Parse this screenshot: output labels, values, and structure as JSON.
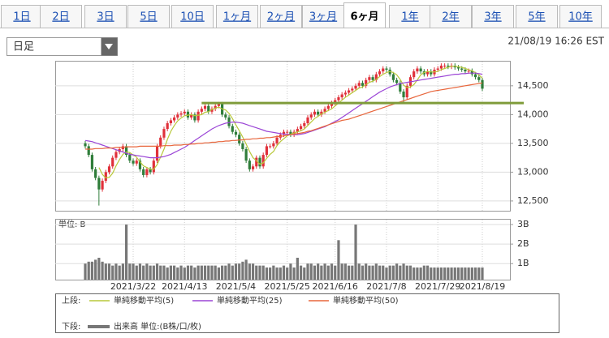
{
  "tabs": [
    "1日",
    "2日",
    "3日",
    "5日",
    "10日",
    "1ヶ月",
    "2ヶ月",
    "3ヶ月",
    "6ヶ月",
    "1年",
    "2年",
    "3年",
    "5年",
    "10年"
  ],
  "active_tab": "6ヶ月",
  "dropdown": "日足",
  "timestamp": "21/08/19 16:26 EST",
  "chart_data": [
    {
      "type": "candlestick",
      "up_color": "#e0303a",
      "down_color": "#2f7d3a",
      "ylim": [
        12330,
        14920
      ],
      "yticks": [
        {
          "value": 12500,
          "label": "12,500"
        },
        {
          "value": 13000,
          "label": "13,000"
        },
        {
          "value": 13500,
          "label": "13,500"
        },
        {
          "value": 14000,
          "label": "14,000"
        },
        {
          "value": 14500,
          "label": "14,500"
        }
      ],
      "grid": true,
      "legend_prefix": "上段:",
      "reference_line": {
        "value": 14200,
        "color": "#7f9c3a"
      },
      "open": [
        13500,
        13450,
        13300,
        13050,
        12900,
        12700,
        12850,
        13000,
        13100,
        13250,
        13350,
        13400,
        13450,
        13300,
        13200,
        13150,
        13200,
        13050,
        12950,
        13050,
        13000,
        13200,
        13450,
        13600,
        13750,
        13850,
        13900,
        13950,
        14000,
        14020,
        14050,
        13950,
        14000,
        13900,
        14050,
        14100,
        14150,
        14050,
        14100,
        14150,
        14180,
        14000,
        13950,
        13800,
        13700,
        13650,
        13500,
        13400,
        13200,
        13050,
        13100,
        13250,
        13100,
        13300,
        13450,
        13450,
        13500,
        13600,
        13650,
        13700,
        13700,
        13650,
        13700,
        13750,
        13800,
        13850,
        13950,
        14000,
        14050,
        14000,
        14050,
        14100,
        14150,
        14200,
        14250,
        14300,
        14350,
        14380,
        14420,
        14450,
        14500,
        14550,
        14500,
        14600,
        14650,
        14600,
        14700,
        14750,
        14800,
        14780,
        14700,
        14600,
        14550,
        14400,
        14300,
        14500,
        14650,
        14750,
        14800,
        14750,
        14700,
        14750,
        14700,
        14780,
        14800,
        14850,
        14850,
        14830,
        14850,
        14820,
        14800,
        14780,
        14750,
        14760,
        14700,
        14650,
        14600
      ],
      "high": [
        13540,
        13490,
        13340,
        13090,
        12940,
        12890,
        13040,
        13140,
        13290,
        13390,
        13440,
        13490,
        13490,
        13340,
        13240,
        13240,
        13240,
        13090,
        13090,
        13090,
        13240,
        13490,
        13640,
        13790,
        13890,
        13940,
        13990,
        14040,
        14060,
        14090,
        14090,
        14040,
        14040,
        14090,
        14140,
        14190,
        14190,
        14140,
        14190,
        14220,
        14220,
        14040,
        13990,
        13840,
        13740,
        13690,
        13540,
        13440,
        13240,
        13140,
        13290,
        13290,
        13340,
        13490,
        13490,
        13540,
        13640,
        13690,
        13740,
        13740,
        13740,
        13740,
        13790,
        13840,
        13890,
        13990,
        14040,
        14090,
        14090,
        14090,
        14140,
        14190,
        14240,
        14290,
        14340,
        14390,
        14420,
        14460,
        14490,
        14540,
        14590,
        14590,
        14640,
        14690,
        14690,
        14740,
        14790,
        14840,
        14840,
        14820,
        14740,
        14640,
        14590,
        14440,
        14540,
        14690,
        14790,
        14840,
        14840,
        14790,
        14790,
        14790,
        14820,
        14840,
        14890,
        14890,
        14890,
        14890,
        14890,
        14860,
        14840,
        14820,
        14800,
        14800,
        14740,
        14690,
        14640
      ],
      "low": [
        13410,
        13260,
        13010,
        12860,
        12420,
        12660,
        12810,
        12960,
        13060,
        13210,
        13310,
        13360,
        13260,
        13160,
        13110,
        13110,
        13010,
        12910,
        12910,
        12960,
        12960,
        13160,
        13410,
        13560,
        13710,
        13810,
        13860,
        13910,
        13960,
        13980,
        13910,
        13910,
        13860,
        13860,
        14010,
        14060,
        14010,
        14010,
        14060,
        14110,
        13960,
        13910,
        13760,
        13660,
        13610,
        13460,
        13360,
        13160,
        13010,
        13010,
        13060,
        13060,
        13060,
        13260,
        13410,
        13410,
        13460,
        13560,
        13610,
        13660,
        13610,
        13610,
        13660,
        13710,
        13760,
        13810,
        13910,
        13960,
        13960,
        13960,
        14010,
        14060,
        14110,
        14160,
        14210,
        14260,
        14310,
        14340,
        14380,
        14410,
        14460,
        14460,
        14460,
        14560,
        14560,
        14560,
        14660,
        14710,
        14740,
        14660,
        14560,
        14510,
        14360,
        14200,
        14260,
        14460,
        14610,
        14710,
        14710,
        14660,
        14660,
        14660,
        14660,
        14740,
        14760,
        14810,
        14790,
        14790,
        14780,
        14760,
        14740,
        14710,
        14710,
        14660,
        14610,
        14560,
        14410
      ],
      "close": [
        13450,
        13300,
        13050,
        12900,
        12700,
        12850,
        13000,
        13100,
        13250,
        13350,
        13400,
        13450,
        13300,
        13200,
        13150,
        13200,
        13050,
        12950,
        13050,
        13000,
        13200,
        13450,
        13600,
        13750,
        13850,
        13900,
        13950,
        14000,
        14020,
        14050,
        13950,
        14000,
        13900,
        14050,
        14100,
        14150,
        14050,
        14100,
        14150,
        14180,
        14000,
        13950,
        13800,
        13700,
        13650,
        13500,
        13400,
        13200,
        13050,
        13100,
        13250,
        13100,
        13300,
        13450,
        13450,
        13500,
        13600,
        13650,
        13700,
        13700,
        13650,
        13700,
        13750,
        13800,
        13850,
        13950,
        14000,
        14050,
        14000,
        14050,
        14100,
        14150,
        14200,
        14250,
        14300,
        14350,
        14380,
        14420,
        14450,
        14500,
        14550,
        14500,
        14600,
        14650,
        14600,
        14700,
        14750,
        14800,
        14780,
        14700,
        14600,
        14550,
        14400,
        14300,
        14500,
        14650,
        14750,
        14800,
        14750,
        14700,
        14750,
        14700,
        14780,
        14800,
        14850,
        14850,
        14830,
        14850,
        14820,
        14800,
        14780,
        14750,
        14760,
        14700,
        14650,
        14600,
        14450
      ],
      "series": [
        {
          "name": "単純移動平均(5)",
          "color": "#b8c83a",
          "values": [
            null,
            null,
            null,
            null,
            13080,
            12960,
            12900,
            12910,
            12980,
            13110,
            13220,
            13310,
            13350,
            13340,
            13300,
            13260,
            13180,
            13110,
            13080,
            13050,
            13050,
            13130,
            13260,
            13400,
            13570,
            13710,
            13810,
            13890,
            13940,
            13980,
            13990,
            14000,
            13980,
            13990,
            14000,
            14040,
            14050,
            14090,
            14110,
            14130,
            14100,
            14080,
            14020,
            13930,
            13820,
            13720,
            13610,
            13490,
            13360,
            13250,
            13200,
            13140,
            13160,
            13240,
            13310,
            13360,
            13460,
            13530,
            13580,
            13630,
            13660,
            13680,
            13700,
            13720,
            13750,
            13810,
            13870,
            13930,
            13970,
            14010,
            14040,
            14070,
            14100,
            14150,
            14200,
            14250,
            14300,
            14340,
            14380,
            14420,
            14460,
            14480,
            14520,
            14560,
            14580,
            14610,
            14660,
            14700,
            14730,
            14750,
            14730,
            14690,
            14610,
            14510,
            14470,
            14480,
            14520,
            14600,
            14690,
            14730,
            14750,
            14740,
            14740,
            14750,
            14780,
            14800,
            14820,
            14840,
            14840,
            14830,
            14820,
            14800,
            14780,
            14760,
            14730,
            14690,
            14630
          ]
        },
        {
          "name": "単純移動平均(25)",
          "color": "#9b45d6",
          "values": [
            13550,
            13540,
            13530,
            13510,
            13490,
            13470,
            13450,
            13430,
            13410,
            13390,
            13370,
            13350,
            13330,
            13310,
            13300,
            13290,
            13280,
            13270,
            13260,
            13250,
            13250,
            13250,
            13260,
            13270,
            13290,
            13310,
            13340,
            13370,
            13400,
            13430,
            13470,
            13510,
            13550,
            13590,
            13630,
            13670,
            13710,
            13750,
            13780,
            13810,
            13830,
            13850,
            13860,
            13870,
            13870,
            13860,
            13850,
            13830,
            13810,
            13790,
            13770,
            13750,
            13730,
            13710,
            13700,
            13690,
            13680,
            13670,
            13660,
            13660,
            13650,
            13650,
            13650,
            13660,
            13670,
            13690,
            13710,
            13730,
            13750,
            13770,
            13790,
            13820,
            13850,
            13880,
            13910,
            13950,
            13990,
            14030,
            14070,
            14110,
            14150,
            14190,
            14230,
            14270,
            14310,
            14350,
            14390,
            14420,
            14450,
            14480,
            14500,
            14520,
            14540,
            14550,
            14560,
            14570,
            14580,
            14590,
            14600,
            14610,
            14620,
            14630,
            14640,
            14650,
            14660,
            14670,
            14680,
            14690,
            14700,
            14700,
            14710,
            14710,
            14720,
            14720,
            14720,
            14710,
            14700
          ]
        },
        {
          "name": "単純移動平均(50)",
          "color": "#e8663c",
          "values": [
            13400,
            13400,
            13400,
            13410,
            13410,
            13410,
            13420,
            13420,
            13420,
            13430,
            13430,
            13430,
            13440,
            13440,
            13440,
            13440,
            13450,
            13450,
            13450,
            13450,
            13450,
            13450,
            13450,
            13460,
            13460,
            13460,
            13470,
            13470,
            13470,
            13480,
            13480,
            13490,
            13490,
            13500,
            13500,
            13510,
            13510,
            13520,
            13520,
            13530,
            13530,
            13540,
            13540,
            13550,
            13550,
            13560,
            13560,
            13570,
            13570,
            13580,
            13580,
            13590,
            13590,
            13600,
            13600,
            13610,
            13620,
            13620,
            13630,
            13640,
            13650,
            13660,
            13670,
            13680,
            13690,
            13710,
            13720,
            13740,
            13760,
            13780,
            13800,
            13820,
            13840,
            13860,
            13880,
            13900,
            13910,
            13920,
            13940,
            13960,
            13980,
            14000,
            14020,
            14040,
            14060,
            14080,
            14100,
            14120,
            14140,
            14160,
            14180,
            14200,
            14220,
            14240,
            14260,
            14280,
            14300,
            14320,
            14340,
            14360,
            14380,
            14400,
            14410,
            14420,
            14430,
            14440,
            14450,
            14460,
            14470,
            14480,
            14490,
            14500,
            14510,
            14520,
            14530,
            14540,
            14550
          ]
        }
      ]
    },
    {
      "type": "bar",
      "unit_label": "単位: B",
      "legend_prefix": "下段:",
      "ylim": [
        0.18,
        3.25
      ],
      "yticks": [
        {
          "value": 1,
          "label": "1B"
        },
        {
          "value": 2,
          "label": "2B"
        },
        {
          "value": 3,
          "label": "3B"
        }
      ],
      "grid": true,
      "categories": [
        null,
        null,
        null,
        null,
        null,
        null,
        null,
        null,
        null,
        null,
        null,
        null,
        null,
        null,
        "2021/3/22",
        null,
        null,
        null,
        null,
        null,
        null,
        null,
        null,
        null,
        null,
        null,
        null,
        null,
        null,
        "2021/4/13",
        null,
        null,
        null,
        null,
        null,
        null,
        null,
        null,
        null,
        null,
        null,
        null,
        null,
        null,
        "2021/5/4",
        null,
        null,
        null,
        null,
        null,
        null,
        null,
        null,
        null,
        null,
        null,
        null,
        null,
        null,
        "2021/5/25",
        null,
        null,
        null,
        null,
        null,
        null,
        null,
        null,
        null,
        null,
        null,
        null,
        null,
        "2021/6/16",
        null,
        null,
        null,
        null,
        null,
        null,
        null,
        null,
        null,
        null,
        null,
        null,
        null,
        null,
        "2021/7/8",
        null,
        null,
        null,
        null,
        null,
        null,
        null,
        null,
        null,
        null,
        null,
        null,
        null,
        null,
        "2021/7/29",
        null,
        null,
        null,
        null,
        null,
        null,
        null,
        null,
        null,
        null,
        null,
        null,
        "2021/8/19"
      ],
      "series": [
        {
          "name": "出来高 単位:(B株/口/枚)",
          "color": "#777777",
          "values": [
            1.0,
            1.1,
            1.1,
            1.2,
            1.3,
            1.1,
            1.0,
            1.0,
            0.9,
            1.0,
            0.9,
            1.0,
            3.0,
            1.0,
            1.0,
            0.9,
            1.0,
            0.9,
            1.0,
            0.9,
            0.9,
            1.0,
            0.9,
            0.9,
            0.8,
            0.9,
            0.9,
            0.8,
            0.9,
            0.8,
            0.9,
            0.9,
            0.8,
            0.9,
            0.9,
            0.9,
            0.9,
            0.9,
            0.9,
            0.8,
            0.9,
            0.9,
            1.0,
            0.9,
            1.0,
            1.0,
            1.1,
            1.2,
            1.0,
            1.0,
            0.9,
            0.9,
            0.9,
            0.8,
            0.8,
            0.9,
            0.8,
            0.8,
            0.9,
            0.8,
            1.0,
            0.8,
            1.3,
            0.9,
            0.8,
            1.0,
            1.0,
            0.9,
            1.0,
            0.9,
            1.0,
            0.9,
            1.0,
            0.9,
            2.2,
            1.0,
            1.0,
            0.9,
            0.9,
            3.0,
            1.0,
            0.9,
            1.0,
            0.9,
            0.9,
            1.0,
            0.9,
            0.9,
            0.8,
            0.9,
            0.9,
            1.0,
            0.9,
            1.0,
            0.9,
            0.9,
            0.8,
            0.8,
            0.8,
            0.9,
            0.9,
            0.8,
            0.8,
            0.8,
            0.8,
            0.8,
            0.8,
            0.8,
            0.8,
            0.8,
            0.8,
            0.8,
            0.8,
            0.8,
            0.8,
            0.8,
            0.8
          ]
        }
      ]
    }
  ]
}
